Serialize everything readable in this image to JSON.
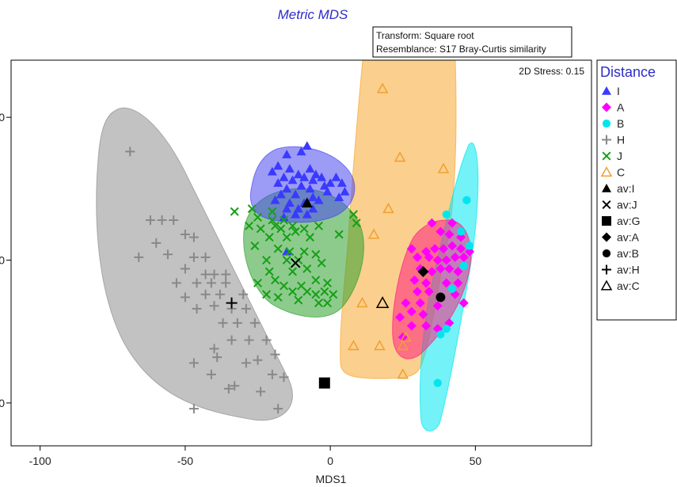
{
  "chart_data": {
    "type": "scatter",
    "title": "Metric MDS",
    "xlabel": "MDS1",
    "ylabel": "",
    "xlim": [
      -110,
      90
    ],
    "ylim": [
      -65,
      70
    ],
    "xticks": [
      -100,
      -50,
      0,
      50
    ],
    "yticks": [
      -50,
      0,
      50
    ],
    "ytick_labels": [
      "0",
      "0",
      "0"
    ],
    "info_lines": [
      "Transform: Square root",
      "Resemblance: S17 Bray-Curtis similarity"
    ],
    "stress": "2D Stress: 0.15",
    "legend_title": "Distance",
    "legend_position": "right",
    "series": [
      {
        "name": "I",
        "marker": "triangle",
        "color": "#3a3aff",
        "points": [
          [
            -8,
            40
          ],
          [
            -10,
            38
          ],
          [
            -15,
            37
          ],
          [
            -18,
            33
          ],
          [
            -14,
            32
          ],
          [
            -20,
            31
          ],
          [
            -7,
            32
          ],
          [
            -11,
            30
          ],
          [
            -5,
            30
          ],
          [
            -16,
            29
          ],
          [
            -9,
            29
          ],
          [
            -3,
            29
          ],
          [
            2,
            29
          ],
          [
            -13,
            28
          ],
          [
            -6,
            28
          ],
          [
            0,
            27
          ],
          [
            -18,
            27
          ],
          [
            -10,
            26
          ],
          [
            -2,
            26
          ],
          [
            4,
            27
          ],
          [
            -15,
            25
          ],
          [
            -7,
            25
          ],
          [
            -1,
            24
          ],
          [
            5,
            24
          ],
          [
            -17,
            23
          ],
          [
            -12,
            23
          ],
          [
            -6,
            22
          ],
          [
            -19,
            21
          ],
          [
            -4,
            21
          ],
          [
            3,
            22
          ],
          [
            -14,
            20
          ],
          [
            -9,
            20
          ],
          [
            -15,
            18
          ],
          [
            -11,
            18
          ],
          [
            -6,
            18
          ],
          [
            -16,
            15
          ],
          [
            -12,
            16
          ],
          [
            -8,
            16
          ],
          [
            -15,
            3
          ]
        ]
      },
      {
        "name": "A",
        "color": "#ff00ff",
        "marker": "diamond",
        "points": [
          [
            35,
            13
          ],
          [
            42,
            13
          ],
          [
            38,
            10
          ],
          [
            41,
            9
          ],
          [
            45,
            8
          ],
          [
            28,
            4
          ],
          [
            33,
            3
          ],
          [
            36,
            4
          ],
          [
            39,
            4
          ],
          [
            42,
            5
          ],
          [
            45,
            4
          ],
          [
            48,
            3
          ],
          [
            30,
            1
          ],
          [
            34,
            1
          ],
          [
            37,
            0
          ],
          [
            40,
            0
          ],
          [
            43,
            1
          ],
          [
            46,
            1
          ],
          [
            31,
            -3
          ],
          [
            35,
            -4
          ],
          [
            38,
            -3
          ],
          [
            41,
            -3
          ],
          [
            44,
            -4
          ],
          [
            29,
            -7
          ],
          [
            33,
            -8
          ],
          [
            40,
            -8
          ],
          [
            44,
            -8
          ],
          [
            30,
            -11
          ],
          [
            34,
            -11
          ],
          [
            43,
            -12
          ],
          [
            26,
            -15
          ],
          [
            31,
            -15
          ],
          [
            37,
            -16
          ],
          [
            46,
            -15
          ],
          [
            28,
            -18
          ],
          [
            32,
            -19
          ],
          [
            24,
            -20
          ],
          [
            28,
            -23
          ],
          [
            33,
            -23
          ],
          [
            37,
            -24
          ],
          [
            41,
            -22
          ],
          [
            25,
            -27
          ]
        ]
      },
      {
        "name": "B",
        "color": "#00e5ee",
        "marker": "circle",
        "points": [
          [
            47,
            21
          ],
          [
            40,
            16
          ],
          [
            45,
            10
          ],
          [
            48,
            5
          ],
          [
            46,
            -2
          ],
          [
            42,
            -10
          ],
          [
            38,
            -26
          ],
          [
            40,
            -24
          ],
          [
            37,
            -43
          ]
        ]
      },
      {
        "name": "H",
        "color": "#888888",
        "marker": "plus",
        "points": [
          [
            -69,
            38
          ],
          [
            -62,
            14
          ],
          [
            -58,
            14
          ],
          [
            -54,
            14
          ],
          [
            -50,
            9
          ],
          [
            -47,
            8
          ],
          [
            -60,
            6
          ],
          [
            -66,
            1
          ],
          [
            -56,
            2
          ],
          [
            -47,
            1
          ],
          [
            -43,
            1
          ],
          [
            -50,
            -3
          ],
          [
            -43,
            -5
          ],
          [
            -40,
            -5
          ],
          [
            -36,
            -5
          ],
          [
            -53,
            -8
          ],
          [
            -46,
            -8
          ],
          [
            -41,
            -8
          ],
          [
            -36,
            -8
          ],
          [
            -50,
            -13
          ],
          [
            -43,
            -12
          ],
          [
            -38,
            -12
          ],
          [
            -30,
            -12
          ],
          [
            -46,
            -17
          ],
          [
            -40,
            -16
          ],
          [
            -34,
            -17
          ],
          [
            -29,
            -17
          ],
          [
            -26,
            -22
          ],
          [
            -32,
            -22
          ],
          [
            -37,
            -22
          ],
          [
            -22,
            -28
          ],
          [
            -28,
            -28
          ],
          [
            -34,
            -28
          ],
          [
            -40,
            -31
          ],
          [
            -19,
            -33
          ],
          [
            -47,
            -36
          ],
          [
            -39,
            -34
          ],
          [
            -29,
            -36
          ],
          [
            -25,
            -35
          ],
          [
            -41,
            -40
          ],
          [
            -33,
            -44
          ],
          [
            -24,
            -46
          ],
          [
            -20,
            -40
          ],
          [
            -16,
            -41
          ],
          [
            -47,
            -52
          ],
          [
            -35,
            -45
          ],
          [
            -18,
            -52
          ]
        ]
      },
      {
        "name": "J",
        "color": "#16a016",
        "marker": "x",
        "points": [
          [
            -33,
            17
          ],
          [
            -27,
            18
          ],
          [
            -20,
            17
          ],
          [
            -25,
            15
          ],
          [
            -20,
            14
          ],
          [
            -16,
            14
          ],
          [
            -13,
            12
          ],
          [
            -19,
            12
          ],
          [
            -9,
            11
          ],
          [
            -4,
            12
          ],
          [
            -28,
            12
          ],
          [
            -24,
            11
          ],
          [
            -17,
            11
          ],
          [
            -21,
            8
          ],
          [
            -12,
            10
          ],
          [
            -15,
            8
          ],
          [
            -7,
            8
          ],
          [
            8,
            16
          ],
          [
            9,
            13
          ],
          [
            3,
            9
          ],
          [
            -26,
            5
          ],
          [
            -18,
            4
          ],
          [
            -14,
            3
          ],
          [
            -9,
            3
          ],
          [
            -5,
            2
          ],
          [
            -22,
            0
          ],
          [
            -15,
            0
          ],
          [
            -11,
            0
          ],
          [
            -3,
            -1
          ],
          [
            -21,
            -4
          ],
          [
            -13,
            -4
          ],
          [
            -8,
            -3
          ],
          [
            -25,
            -8
          ],
          [
            -19,
            -7
          ],
          [
            -5,
            -7
          ],
          [
            -16,
            -9
          ],
          [
            -10,
            -9
          ],
          [
            -1,
            -8
          ],
          [
            -22,
            -12
          ],
          [
            -18,
            -13
          ],
          [
            -13,
            -11
          ],
          [
            -8,
            -11
          ],
          [
            -2,
            -11
          ],
          [
            1,
            -12
          ],
          [
            -4,
            -15
          ],
          [
            -1,
            -15
          ],
          [
            -5,
            -12
          ],
          [
            -11,
            -14
          ]
        ]
      },
      {
        "name": "C",
        "color": "#f0a030",
        "marker": "triangle-open",
        "points": [
          [
            18,
            60
          ],
          [
            24,
            36
          ],
          [
            39,
            32
          ],
          [
            20,
            18
          ],
          [
            15,
            9
          ],
          [
            8,
            -30
          ],
          [
            17,
            -30
          ],
          [
            25,
            -30
          ],
          [
            26,
            -27
          ],
          [
            11,
            -15
          ],
          [
            25,
            -40
          ]
        ]
      },
      {
        "name": "av:I",
        "color": "#000000",
        "marker": "triangle",
        "points": [
          [
            -8,
            20
          ]
        ]
      },
      {
        "name": "av:J",
        "color": "#000000",
        "marker": "x",
        "points": [
          [
            -12,
            -1
          ]
        ]
      },
      {
        "name": "av:G",
        "color": "#000000",
        "marker": "square",
        "points": [
          [
            -2,
            -43
          ]
        ]
      },
      {
        "name": "av:A",
        "color": "#000000",
        "marker": "diamond",
        "points": [
          [
            32,
            -4
          ]
        ]
      },
      {
        "name": "av:B",
        "color": "#000000",
        "marker": "circle",
        "points": [
          [
            38,
            -13
          ]
        ]
      },
      {
        "name": "av:H",
        "color": "#000000",
        "marker": "plus",
        "points": [
          [
            -34,
            -15
          ]
        ]
      },
      {
        "name": "av:C",
        "color": "#000000",
        "marker": "triangle-open",
        "points": [
          [
            18,
            -15
          ]
        ]
      }
    ]
  }
}
